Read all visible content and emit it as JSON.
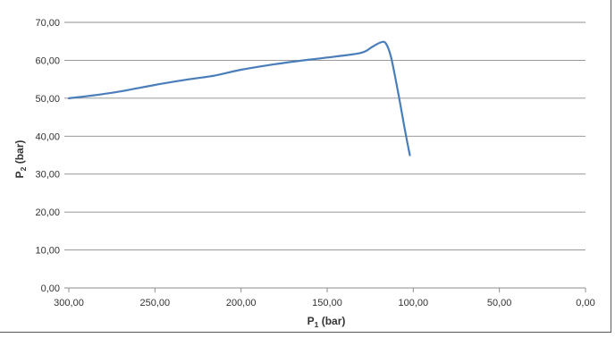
{
  "chart_data": {
    "type": "line",
    "title": "",
    "xlabel_main": "P",
    "xlabel_sub": "1",
    "xlabel_unit": " (bar)",
    "ylabel_main": "P",
    "ylabel_sub": "2",
    "ylabel_unit": " (bar)",
    "x_reversed": true,
    "xlim": [
      0,
      300
    ],
    "ylim": [
      0,
      70
    ],
    "x_ticks": [
      300,
      250,
      200,
      150,
      100,
      50,
      0
    ],
    "x_tick_labels": [
      "300,00",
      "250,00",
      "200,00",
      "150,00",
      "100,00",
      "50,00",
      "0,00"
    ],
    "y_ticks": [
      0,
      10,
      20,
      30,
      40,
      50,
      60,
      70
    ],
    "y_tick_labels": [
      "0,00",
      "10,00",
      "20,00",
      "30,00",
      "40,00",
      "50,00",
      "60,00",
      "70,00"
    ],
    "grid": "horizontal",
    "legend": "none",
    "series": [
      {
        "color": "#4a7ebb",
        "x": [
          300,
          285,
          270,
          250,
          230,
          215,
          200,
          180,
          160,
          145,
          130,
          124,
          119,
          116,
          113,
          109,
          105,
          102
        ],
        "y": [
          50.0,
          50.8,
          51.8,
          53.5,
          55.0,
          56.0,
          57.5,
          59.0,
          60.2,
          61.0,
          62.0,
          63.5,
          64.7,
          64.5,
          61.0,
          52.0,
          42.0,
          35.0
        ]
      }
    ]
  }
}
